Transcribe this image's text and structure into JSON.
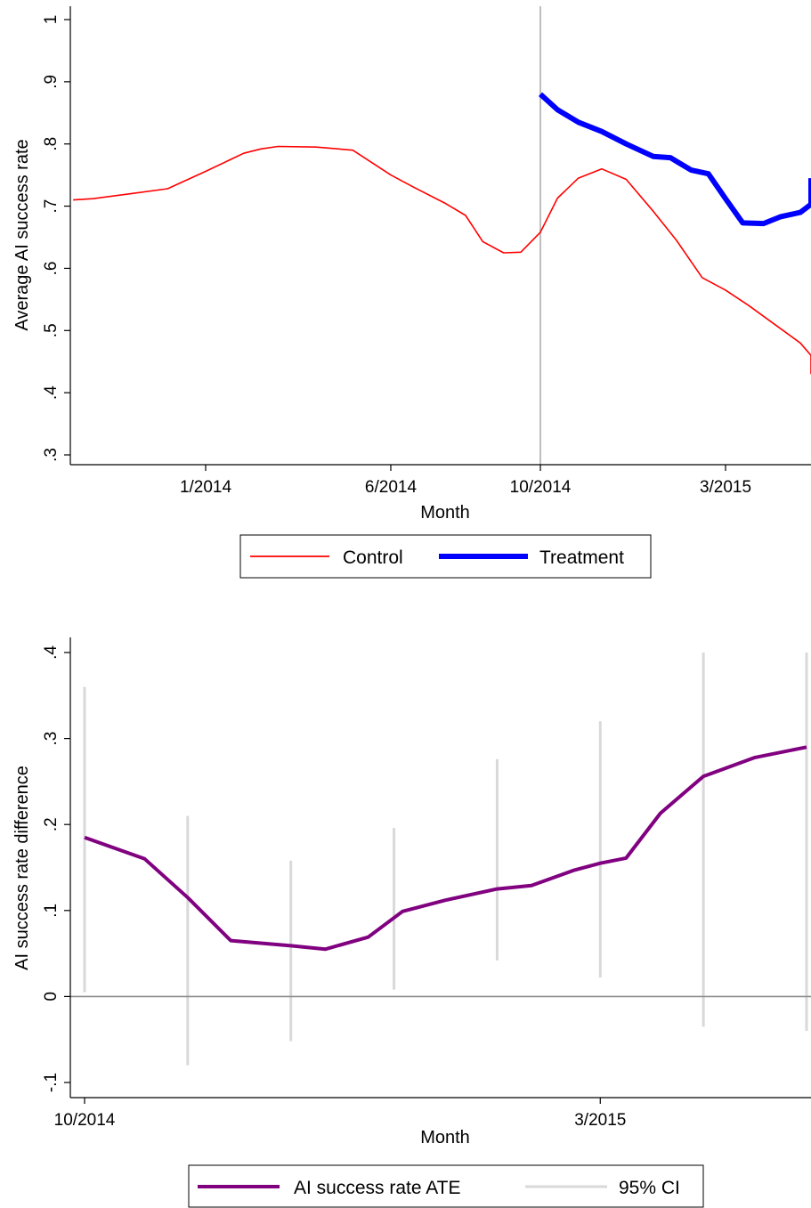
{
  "chart_data": [
    {
      "type": "line",
      "xlabel": "Month",
      "ylabel": "Average AI success rate",
      "ylim": [
        0.3,
        1.0
      ],
      "xlim": [
        "2013-09-15",
        "2015-06-10"
      ],
      "yticks": [
        {
          "value": 0.3,
          "label": ".3"
        },
        {
          "value": 0.4,
          "label": ".4"
        },
        {
          "value": 0.5,
          "label": ".5"
        },
        {
          "value": 0.6,
          "label": ".6"
        },
        {
          "value": 0.7,
          "label": ".7"
        },
        {
          "value": 0.8,
          "label": ".8"
        },
        {
          "value": 0.9,
          "label": ".9"
        },
        {
          "value": 1.0,
          "label": "1"
        }
      ],
      "xticks": [
        {
          "value": "2014-01-01",
          "label": "1/2014"
        },
        {
          "value": "2014-06-01",
          "label": "6/2014"
        },
        {
          "value": "2014-10-01",
          "label": "10/2014"
        },
        {
          "value": "2015-03-01",
          "label": "3/2015"
        }
      ],
      "reference_line_x": "2014-10-01",
      "legend_position": "bottom",
      "series": [
        {
          "name": "Control",
          "color": "#ff0000",
          "x": [
            "2013-09-15",
            "2013-10-01",
            "2013-11-01",
            "2013-12-01",
            "2014-01-01",
            "2014-02-01",
            "2014-02-15",
            "2014-03-01",
            "2014-04-01",
            "2014-05-01",
            "2014-06-01",
            "2014-06-20",
            "2014-07-15",
            "2014-08-01",
            "2014-08-15",
            "2014-09-01",
            "2014-09-15",
            "2014-10-01",
            "2014-10-15",
            "2014-11-01",
            "2014-11-20",
            "2014-12-10",
            "2015-01-01",
            "2015-01-20",
            "2015-02-10",
            "2015-03-01",
            "2015-03-20",
            "2015-04-10",
            "2015-05-01",
            "2015-05-20",
            "2015-06-10"
          ],
          "y": [
            0.71,
            0.712,
            0.72,
            0.728,
            0.756,
            0.785,
            0.792,
            0.796,
            0.795,
            0.79,
            0.75,
            0.73,
            0.705,
            0.685,
            0.643,
            0.625,
            0.626,
            0.658,
            0.713,
            0.745,
            0.76,
            0.743,
            0.692,
            0.645,
            0.585,
            0.565,
            0.54,
            0.51,
            0.48,
            0.46,
            0.43
          ]
        },
        {
          "name": "Treatment",
          "color": "#0000ff",
          "x": [
            "2014-10-01",
            "2014-10-15",
            "2014-11-01",
            "2014-11-20",
            "2014-12-10",
            "2015-01-01",
            "2015-01-15",
            "2015-02-01",
            "2015-02-15",
            "2015-03-01",
            "2015-03-15",
            "2015-04-01",
            "2015-04-15",
            "2015-05-01",
            "2015-05-20",
            "2015-06-10"
          ],
          "y": [
            0.88,
            0.855,
            0.835,
            0.82,
            0.8,
            0.78,
            0.778,
            0.758,
            0.752,
            0.712,
            0.673,
            0.672,
            0.683,
            0.69,
            0.703,
            0.745
          ]
        }
      ]
    },
    {
      "type": "line",
      "xlabel": "Month",
      "ylabel": "AI success rate difference",
      "ylim": [
        -0.1,
        0.4
      ],
      "xlim": [
        0,
        7
      ],
      "yticks": [
        {
          "value": -0.1,
          "label": "-.1"
        },
        {
          "value": 0.0,
          "label": "0"
        },
        {
          "value": 0.1,
          "label": ".1"
        },
        {
          "value": 0.2,
          "label": ".2"
        },
        {
          "value": 0.3,
          "label": ".3"
        },
        {
          "value": 0.4,
          "label": ".4"
        }
      ],
      "xticks": [
        {
          "value": 0,
          "label": "10/2014"
        },
        {
          "value": 5,
          "label": "3/2015"
        }
      ],
      "reference_line_y": 0,
      "legend_position": "bottom",
      "series": [
        {
          "name": "AI success rate ATE",
          "color": "#800080",
          "x": [
            0,
            0.583,
            1.0,
            1.417,
            2.0,
            2.333,
            2.75,
            3.083,
            3.5,
            4.0,
            4.333,
            4.75,
            5.0,
            5.25,
            5.583,
            6.0,
            6.5,
            7.0
          ],
          "y": [
            0.185,
            0.16,
            0.115,
            0.065,
            0.059,
            0.055,
            0.069,
            0.099,
            0.112,
            0.125,
            0.129,
            0.147,
            0.155,
            0.161,
            0.213,
            0.256,
            0.278,
            0.29
          ]
        },
        {
          "name": "95% CI",
          "color": "#d9d9d9",
          "intervals": [
            {
              "x": 0,
              "low": 0.005,
              "high": 0.36
            },
            {
              "x": 1,
              "low": -0.08,
              "high": 0.21
            },
            {
              "x": 2,
              "low": -0.052,
              "high": 0.158
            },
            {
              "x": 3,
              "low": 0.008,
              "high": 0.196
            },
            {
              "x": 4,
              "low": 0.042,
              "high": 0.276
            },
            {
              "x": 5,
              "low": 0.022,
              "high": 0.32
            },
            {
              "x": 6,
              "low": -0.035,
              "high": 0.4
            },
            {
              "x": 7,
              "low": -0.04,
              "high": 0.4
            }
          ]
        }
      ]
    }
  ]
}
